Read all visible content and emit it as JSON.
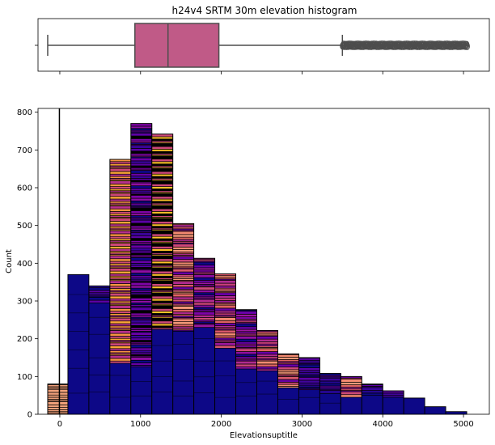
{
  "chart_data": [
    {
      "type": "box",
      "title": "h24v4 SRTM 30m elevation histogram",
      "xlim": [
        -270,
        5320
      ],
      "box": {
        "q1": 930,
        "median": 1340,
        "q3": 1970,
        "whisker_low": -150,
        "whisker_high": 3500,
        "outlier_range": [
          3500,
          5050
        ]
      },
      "box_color": "#c05a87",
      "line_color": "#4d4d4d",
      "x_ticks": [
        0,
        1000,
        2000,
        3000,
        4000,
        5000
      ],
      "show_tick_labels": false
    },
    {
      "type": "bar",
      "title": "",
      "xlabel": "Elevationsuptitle",
      "ylabel": "Count",
      "xlim": [
        -270,
        5320
      ],
      "ylim": [
        0,
        810
      ],
      "x_ticks": [
        0,
        1000,
        2000,
        3000,
        4000,
        5000
      ],
      "y_ticks": [
        0,
        100,
        200,
        300,
        400,
        500,
        600,
        700,
        800
      ],
      "vertical_line_x": -5,
      "bins": [
        {
          "x0": -150,
          "x1": 100,
          "total": 80,
          "base": 0,
          "palette": "peach"
        },
        {
          "x0": 100,
          "x1": 360,
          "total": 370,
          "base": 370,
          "palette": "blue"
        },
        {
          "x0": 360,
          "x1": 620,
          "total": 340,
          "base": 295,
          "palette": "purple"
        },
        {
          "x0": 620,
          "x1": 880,
          "total": 675,
          "base": 135,
          "palette": "orange"
        },
        {
          "x0": 880,
          "x1": 1140,
          "total": 770,
          "base": 125,
          "palette": "violet"
        },
        {
          "x0": 1140,
          "x1": 1400,
          "total": 742,
          "base": 225,
          "palette": "yellow"
        },
        {
          "x0": 1400,
          "x1": 1660,
          "total": 505,
          "base": 220,
          "palette": "salmon"
        },
        {
          "x0": 1660,
          "x1": 1920,
          "total": 413,
          "base": 230,
          "palette": "magenta"
        },
        {
          "x0": 1920,
          "x1": 2180,
          "total": 372,
          "base": 175,
          "palette": "pink"
        },
        {
          "x0": 2180,
          "x1": 2440,
          "total": 277,
          "base": 120,
          "palette": "magenta"
        },
        {
          "x0": 2440,
          "x1": 2700,
          "total": 222,
          "base": 115,
          "palette": "pink"
        },
        {
          "x0": 2700,
          "x1": 2960,
          "total": 160,
          "base": 70,
          "palette": "salmon"
        },
        {
          "x0": 2960,
          "x1": 3220,
          "total": 150,
          "base": 65,
          "palette": "purple"
        },
        {
          "x0": 3220,
          "x1": 3480,
          "total": 108,
          "base": 55,
          "palette": "purple"
        },
        {
          "x0": 3480,
          "x1": 3740,
          "total": 100,
          "base": 45,
          "palette": "salmon"
        },
        {
          "x0": 3740,
          "x1": 4000,
          "total": 80,
          "base": 50,
          "palette": "purple"
        },
        {
          "x0": 4000,
          "x1": 4260,
          "total": 62,
          "base": 45,
          "palette": "purple"
        },
        {
          "x0": 4260,
          "x1": 4520,
          "total": 43,
          "base": 43,
          "palette": "blue"
        },
        {
          "x0": 4520,
          "x1": 4780,
          "total": 20,
          "base": 20,
          "palette": "blue"
        },
        {
          "x0": 4780,
          "x1": 5040,
          "total": 7,
          "base": 7,
          "palette": "blue"
        }
      ],
      "colors": {
        "base": "#0d0887",
        "edge": "#000000",
        "palettes": {
          "peach": [
            "#f0a07a",
            "#3a0a2a",
            "#e88a6a"
          ],
          "blue": [
            "#0d0887",
            "#2a0593"
          ],
          "purple": [
            "#0d0887",
            "#3a049a",
            "#5c01a6",
            "#24068f",
            "#41049d"
          ],
          "orange": [
            "#fca636",
            "#fdb42f",
            "#e4695e",
            "#cc4778",
            "#b12a90",
            "#e16462",
            "#f89441",
            "#0d0887",
            "#6a00a8",
            "#b6308b",
            "#d8576b",
            "#000000"
          ],
          "violet": [
            "#6a00a8",
            "#5c01a6",
            "#7e03a8",
            "#0d0887",
            "#3a049a",
            "#000000",
            "#8f0da4"
          ],
          "yellow": [
            "#f0f921",
            "#fcce25",
            "#fdc328",
            "#f3e32f",
            "#eff821",
            "#cc4778",
            "#0d0887",
            "#41049d",
            "#000000"
          ],
          "salmon": [
            "#f48a71",
            "#e16462",
            "#d8576b",
            "#cc4778",
            "#f89b7a",
            "#b12a90",
            "#6a00a8"
          ],
          "magenta": [
            "#9c179e",
            "#b12a90",
            "#8f0da4",
            "#6a00a8",
            "#7e03a8",
            "#cc4778",
            "#0d0887"
          ],
          "pink": [
            "#c83e7b",
            "#d8576b",
            "#e16462",
            "#b12a90",
            "#9c179e",
            "#f48a71",
            "#6a00a8"
          ]
        }
      }
    }
  ]
}
